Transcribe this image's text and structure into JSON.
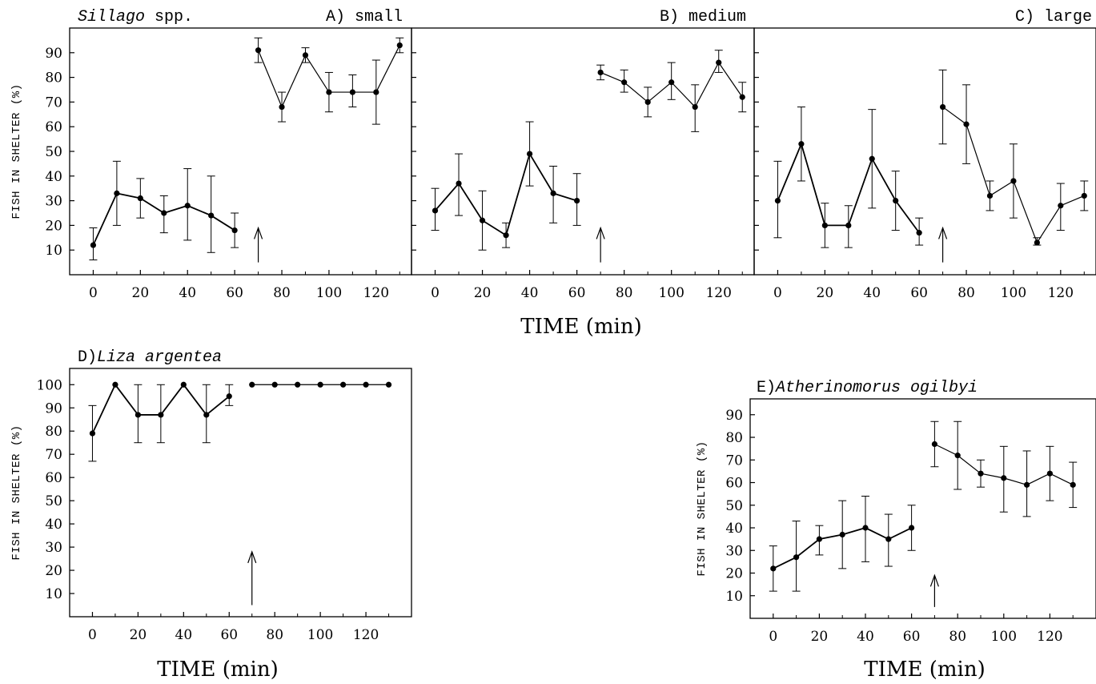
{
  "figure": {
    "y_axis_label": "FISH IN SHELTER (%)",
    "x_axis_label": "TIME (min)"
  },
  "chart_data": [
    {
      "id": "A",
      "type": "line",
      "title_prefix": "",
      "title_species": "Sillago",
      "title_suffix": " spp.",
      "title_right": "A) small",
      "xlabel": "",
      "ylabel": "FISH IN SHELTER (%)",
      "xlim": [
        -10,
        135
      ],
      "ylim": [
        0,
        100
      ],
      "x_ticks": [
        0,
        20,
        40,
        60,
        80,
        100,
        120
      ],
      "y_ticks": [
        10,
        20,
        30,
        40,
        50,
        60,
        70,
        80,
        90
      ],
      "y_ticks_labeled": true,
      "arrow_x": 70,
      "segments": [
        {
          "x": [
            0,
            10,
            20,
            30,
            40,
            50,
            60
          ],
          "y": [
            12,
            33,
            31,
            25,
            28,
            24,
            18
          ],
          "lower": [
            6,
            20,
            23,
            17,
            14,
            9,
            11
          ],
          "upper": [
            19,
            46,
            39,
            32,
            43,
            40,
            25
          ]
        },
        {
          "x": [
            70,
            80,
            90,
            100,
            110,
            120,
            130
          ],
          "y": [
            91,
            68,
            89,
            74,
            74,
            74,
            93
          ],
          "lower": [
            86,
            62,
            86,
            66,
            68,
            61,
            90
          ],
          "upper": [
            96,
            74,
            92,
            82,
            81,
            87,
            96
          ]
        }
      ]
    },
    {
      "id": "B",
      "type": "line",
      "title_prefix": "",
      "title_species": "",
      "title_suffix": "",
      "title_right": "B) medium",
      "xlabel": "",
      "ylabel": "",
      "xlim": [
        -10,
        135
      ],
      "ylim": [
        0,
        100
      ],
      "x_ticks": [
        0,
        20,
        40,
        60,
        80,
        100,
        120
      ],
      "y_ticks": [
        10,
        20,
        30,
        40,
        50,
        60,
        70,
        80,
        90
      ],
      "y_ticks_labeled": false,
      "arrow_x": 70,
      "segments": [
        {
          "x": [
            0,
            10,
            20,
            30,
            40,
            50,
            60
          ],
          "y": [
            26,
            37,
            22,
            16,
            49,
            33,
            30
          ],
          "lower": [
            18,
            24,
            10,
            11,
            36,
            21,
            20
          ],
          "upper": [
            35,
            49,
            34,
            21,
            62,
            44,
            41
          ]
        },
        {
          "x": [
            70,
            80,
            90,
            100,
            110,
            120,
            130
          ],
          "y": [
            82,
            78,
            70,
            78,
            68,
            86,
            72
          ],
          "lower": [
            79,
            74,
            64,
            71,
            58,
            82,
            66
          ],
          "upper": [
            85,
            83,
            76,
            86,
            77,
            91,
            78
          ]
        }
      ]
    },
    {
      "id": "C",
      "type": "line",
      "title_prefix": "",
      "title_species": "",
      "title_suffix": "",
      "title_right": "C) large",
      "xlabel": "",
      "ylabel": "",
      "xlim": [
        -10,
        135
      ],
      "ylim": [
        0,
        100
      ],
      "x_ticks": [
        0,
        20,
        40,
        60,
        80,
        100,
        120
      ],
      "y_ticks": [
        10,
        20,
        30,
        40,
        50,
        60,
        70,
        80,
        90
      ],
      "y_ticks_labeled": false,
      "arrow_x": 70,
      "segments": [
        {
          "x": [
            0,
            10,
            20,
            30,
            40,
            50,
            60
          ],
          "y": [
            30,
            53,
            20,
            20,
            47,
            30,
            17
          ],
          "lower": [
            15,
            38,
            11,
            11,
            27,
            18,
            12
          ],
          "upper": [
            46,
            68,
            29,
            28,
            67,
            42,
            23
          ]
        },
        {
          "x": [
            70,
            80,
            90,
            100,
            110,
            120,
            130
          ],
          "y": [
            68,
            61,
            32,
            38,
            13,
            28,
            32
          ],
          "lower": [
            53,
            45,
            26,
            23,
            12,
            18,
            26
          ],
          "upper": [
            83,
            77,
            38,
            53,
            15,
            37,
            38
          ]
        }
      ]
    },
    {
      "id": "D",
      "type": "line",
      "title_prefix": "D)",
      "title_species": "Liza argentea",
      "title_suffix": "",
      "title_right": "",
      "xlabel": "TIME (min)",
      "ylabel": "FISH IN SHELTER (%)",
      "xlim": [
        -10,
        140
      ],
      "ylim": [
        0,
        107
      ],
      "x_ticks": [
        0,
        20,
        40,
        60,
        80,
        100,
        120
      ],
      "y_ticks": [
        10,
        20,
        30,
        40,
        50,
        60,
        70,
        80,
        90,
        100
      ],
      "y_ticks_labeled": true,
      "arrow_x": 70,
      "segments": [
        {
          "x": [
            0,
            10,
            20,
            30,
            40,
            50,
            60
          ],
          "y": [
            79,
            100,
            87,
            87,
            100,
            87,
            95
          ],
          "lower": [
            67,
            100,
            75,
            75,
            100,
            75,
            91
          ],
          "upper": [
            91,
            100,
            100,
            100,
            100,
            100,
            100
          ]
        },
        {
          "x": [
            70,
            80,
            90,
            100,
            110,
            120,
            130
          ],
          "y": [
            100,
            100,
            100,
            100,
            100,
            100,
            100
          ],
          "lower": [
            100,
            100,
            100,
            100,
            100,
            100,
            100
          ],
          "upper": [
            100,
            100,
            100,
            100,
            100,
            100,
            100
          ]
        }
      ]
    },
    {
      "id": "E",
      "type": "line",
      "title_prefix": "E)",
      "title_species": "Atherinomorus ogilbyi",
      "title_suffix": "",
      "title_right": "",
      "xlabel": "TIME (min)",
      "ylabel": "FISH IN SHELTER (%)",
      "xlim": [
        -10,
        140
      ],
      "ylim": [
        0,
        97
      ],
      "x_ticks": [
        0,
        20,
        40,
        60,
        80,
        100,
        120
      ],
      "y_ticks": [
        10,
        20,
        30,
        40,
        50,
        60,
        70,
        80,
        90
      ],
      "y_ticks_labeled": true,
      "arrow_x": 70,
      "segments": [
        {
          "x": [
            0,
            10,
            20,
            30,
            40,
            50,
            60
          ],
          "y": [
            22,
            27,
            35,
            37,
            40,
            35,
            40
          ],
          "lower": [
            12,
            12,
            28,
            22,
            25,
            23,
            30
          ],
          "upper": [
            32,
            43,
            41,
            52,
            54,
            46,
            50
          ]
        },
        {
          "x": [
            70,
            80,
            90,
            100,
            110,
            120,
            130
          ],
          "y": [
            77,
            72,
            64,
            62,
            59,
            64,
            59
          ],
          "lower": [
            67,
            57,
            58,
            47,
            45,
            52,
            49
          ],
          "upper": [
            87,
            87,
            70,
            76,
            74,
            76,
            69
          ]
        }
      ]
    }
  ]
}
